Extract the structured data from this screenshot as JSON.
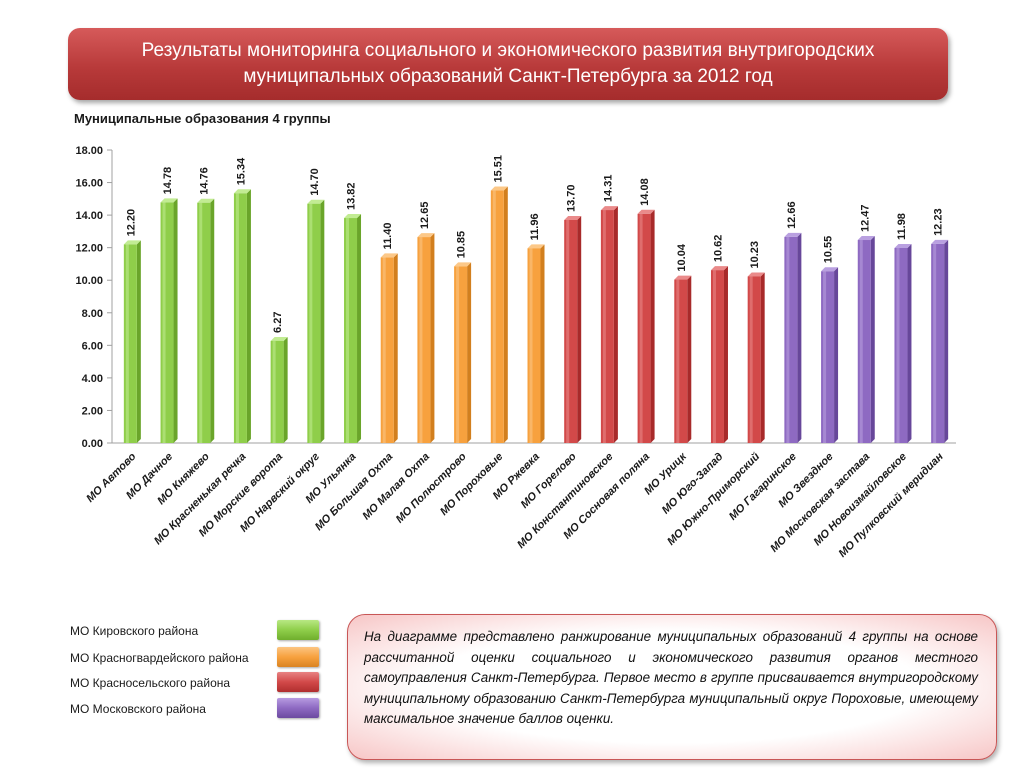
{
  "header": {
    "title": "Результаты мониторинга социального и экономического развития внутригородских муниципальных образований Санкт-Петербурга за 2012 год",
    "subtitle": "Муниципальные образования 4 группы"
  },
  "chart_data": {
    "type": "bar",
    "title": "",
    "xlabel": "",
    "ylabel": "",
    "ylim": [
      0,
      18
    ],
    "yticks": [
      "0.00",
      "2.00",
      "4.00",
      "6.00",
      "8.00",
      "10.00",
      "12.00",
      "14.00",
      "16.00",
      "18.00"
    ],
    "grid": false,
    "categories": [
      "МО Автово",
      "МО Дачное",
      "МО Княжево",
      "МО Красненькая речка",
      "МО Морские ворота",
      "МО Нарвский округ",
      "МО Ульянка",
      "МО Большая Охта",
      "МО Малая Охта",
      "МО Полюстрово",
      "МО Пороховые",
      "МО Ржевка",
      "МО Горелово",
      "МО Константиновское",
      "МО Сосновая поляна",
      "МО Урицк",
      "МО Юго-Запад",
      "МО Южно-Приморский",
      "МО Гагаринское",
      "МО Звездное",
      "МО Московская застава",
      "МО Новоизмайловское",
      "МО Пулковский меридиан"
    ],
    "values": [
      12.2,
      14.78,
      14.76,
      15.34,
      6.27,
      14.7,
      13.82,
      11.4,
      12.65,
      10.85,
      15.51,
      11.96,
      13.7,
      14.31,
      14.08,
      10.04,
      10.62,
      10.23,
      12.66,
      10.55,
      12.47,
      11.98,
      12.23
    ],
    "labels": [
      "12.20",
      "14.78",
      "14.76",
      "15.34",
      "6.27",
      "14.70",
      "13.82",
      "11.40",
      "12.65",
      "10.85",
      "15.51",
      "11.96",
      "13.70",
      "14.31",
      "14.08",
      "10.04",
      "10.62",
      "10.23",
      "12.66",
      "10.55",
      "12.47",
      "11.98",
      "12.23"
    ],
    "groups": [
      0,
      0,
      0,
      0,
      0,
      0,
      0,
      1,
      1,
      1,
      1,
      1,
      2,
      2,
      2,
      2,
      2,
      2,
      3,
      3,
      3,
      3,
      3
    ]
  },
  "legend": {
    "items": [
      {
        "label": "МО Кировского района",
        "color": "#8fce4a"
      },
      {
        "label": "МО Красногвардейского района",
        "color": "#f7a13e"
      },
      {
        "label": "МО Красносельского района",
        "color": "#d24949"
      },
      {
        "label": "МО Московского района",
        "color": "#8e6ac2"
      }
    ]
  },
  "note": {
    "text": "На диаграмме представлено ранжирование муниципальных образований 4 группы на основе рассчитанной оценки социального и экономического развития органов местного самоуправления Санкт-Петербурга. Первое место в группе присваивается внутригородскому муниципальному образованию Санкт-Петербурга муниципальный округ Пороховые, имеющему максимальное значение баллов оценки."
  }
}
